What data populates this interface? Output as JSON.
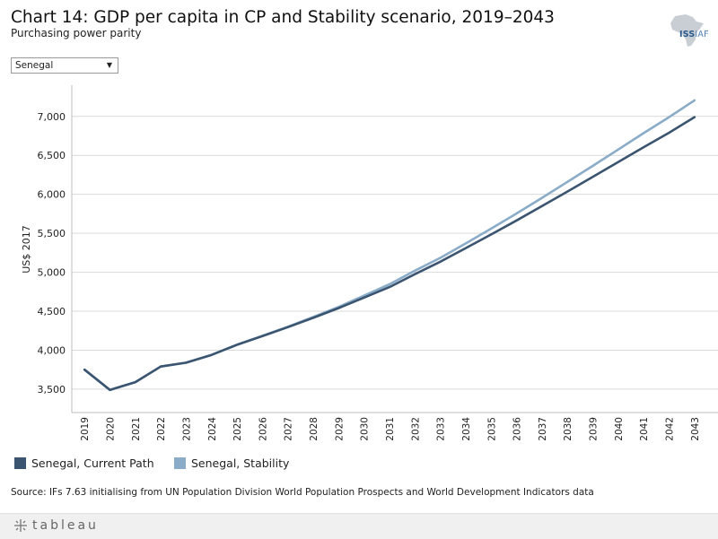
{
  "header": {
    "title": "Chart 14: GDP per capita in CP and Stability scenario, 2019–2043",
    "subtitle": "Purchasing power parity"
  },
  "logo": {
    "text_iss": "ISS",
    "text_iaf": "IAF"
  },
  "filter": {
    "selected": "Senegal"
  },
  "chart_data": {
    "type": "line",
    "title": "Chart 14: GDP per capita in CP and Stability scenario, 2019–2043",
    "subtitle": "Purchasing power parity",
    "xlabel": "",
    "ylabel": "US$ 2017",
    "x": [
      "2019",
      "2020",
      "2021",
      "2022",
      "2023",
      "2024",
      "2025",
      "2026",
      "2027",
      "2028",
      "2029",
      "2030",
      "2031",
      "2032",
      "2033",
      "2034",
      "2035",
      "2036",
      "2037",
      "2038",
      "2039",
      "2040",
      "2041",
      "2042",
      "2043"
    ],
    "ylim": [
      3200,
      7400
    ],
    "yticks": [
      3500,
      4000,
      4500,
      5000,
      5500,
      6000,
      6500,
      7000
    ],
    "ytick_labels": [
      "3,500",
      "4,000",
      "4,500",
      "5,000",
      "5,500",
      "6,000",
      "6,500",
      "7,000"
    ],
    "grid": true,
    "series": [
      {
        "name": "Senegal, Stability",
        "color": "#8aacc8",
        "values": [
          3750,
          3490,
          3590,
          3790,
          3840,
          3940,
          4070,
          4185,
          4300,
          4425,
          4555,
          4700,
          4845,
          5020,
          5185,
          5370,
          5560,
          5755,
          5955,
          6160,
          6365,
          6575,
          6785,
          6990,
          7205
        ]
      },
      {
        "name": "Senegal, Current Path",
        "color": "#3b5570",
        "values": [
          3750,
          3490,
          3590,
          3790,
          3840,
          3940,
          4070,
          4180,
          4295,
          4415,
          4540,
          4675,
          4810,
          4975,
          5135,
          5310,
          5485,
          5665,
          5850,
          6035,
          6225,
          6415,
          6605,
          6790,
          6990
        ]
      }
    ]
  },
  "legend": {
    "items": [
      {
        "label": "Senegal, Current Path",
        "color": "#3b5570"
      },
      {
        "label": "Senegal, Stability",
        "color": "#8aacc8"
      }
    ]
  },
  "source": "Source: IFs 7.63 initialising from UN Population Division World Population Prospects and World Development Indicators data",
  "footer": {
    "brand": "tableau"
  }
}
